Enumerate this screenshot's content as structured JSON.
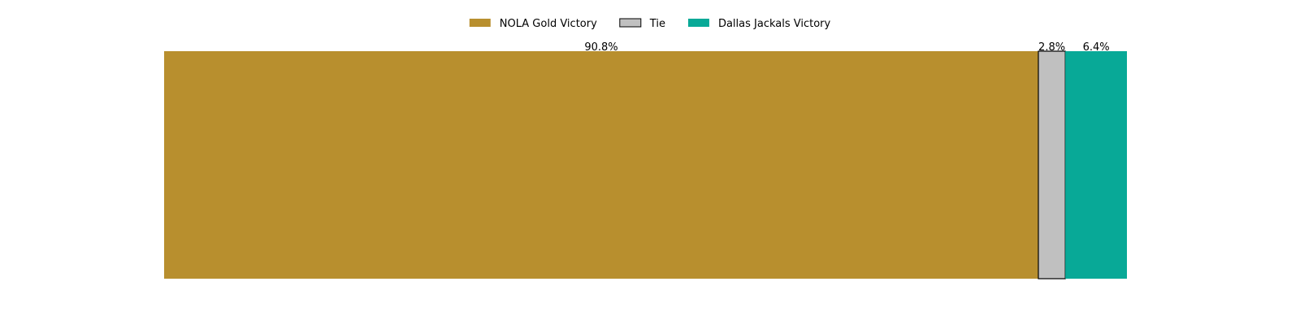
{
  "chart_data": {
    "type": "bar",
    "orientation": "horizontal",
    "stacked": true,
    "normalized": true,
    "title": "",
    "xlabel": "",
    "ylabel": "",
    "xlim": [
      0,
      100
    ],
    "axes_visible": false,
    "grid": false,
    "legend_position": "top-center",
    "series": [
      {
        "name": "NOLA Gold Victory",
        "value": 90.8,
        "label": "90.8%",
        "color": "#b88f2e",
        "outlined": false
      },
      {
        "name": "Tie",
        "value": 2.8,
        "label": "2.8%",
        "color": "#c0c0c0",
        "outlined": true
      },
      {
        "name": "Dallas Jackals Victory",
        "value": 6.4,
        "label": "6.4%",
        "color": "#08a997",
        "outlined": false
      }
    ]
  }
}
